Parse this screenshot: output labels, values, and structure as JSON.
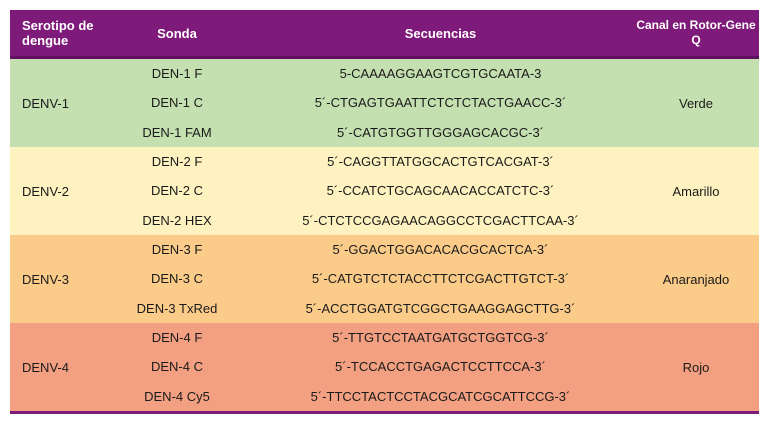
{
  "header": {
    "serotype": "Serotipo de dengue",
    "probe": "Sonda",
    "sequences": "Secuencias",
    "channel": "Canal en Rotor-Gene Q"
  },
  "groups": [
    {
      "serotype": "DENV-1",
      "channel": "Verde",
      "color": "#c5e0b0",
      "rows": [
        {
          "probe": "DEN-1 F",
          "sequence": "5-CAAAAGGAAGTCGTGCAATA-3"
        },
        {
          "probe": "DEN-1 C",
          "sequence": "5´-CTGAGTGAATTCTCTCTACTGAACC-3´"
        },
        {
          "probe": "DEN-1 FAM",
          "sequence": "5´-CATGTGGTTGGGAGCACGC-3´"
        }
      ]
    },
    {
      "serotype": "DENV-2",
      "channel": "Amarillo",
      "color": "#fdf2c0",
      "rows": [
        {
          "probe": "DEN-2 F",
          "sequence": "5´-CAGGTTATGGCACTGTCACGAT-3´"
        },
        {
          "probe": "DEN-2 C",
          "sequence": "5´-CCATCTGCAGCAACACCATCTC-3´"
        },
        {
          "probe": "DEN-2 HEX",
          "sequence": "5´-CTCTCCGAGAACAGGCCTCGACTTCAA-3´"
        }
      ]
    },
    {
      "serotype": "DENV-3",
      "channel": "Anaranjado",
      "color": "#fbcb8a",
      "rows": [
        {
          "probe": "DEN-3 F",
          "sequence": "5´-GGACTGGACACACGCACTCA-3´"
        },
        {
          "probe": "DEN-3 C",
          "sequence": "5´-CATGTCTCTACCTTCTCGACTTGTCT-3´"
        },
        {
          "probe": "DEN-3 TxRed",
          "sequence": "5´-ACCTGGATGTCGGCTGAAGGAGCTTG-3´"
        }
      ]
    },
    {
      "serotype": "DENV-4",
      "channel": "Rojo",
      "color": "#f2a081",
      "rows": [
        {
          "probe": "DEN-4 F",
          "sequence": "5´-TTGTCCTAATGATGCTGGTCG-3´"
        },
        {
          "probe": "DEN-4 C",
          "sequence": "5´-TCCACCTGAGACTCCTTCCA-3´"
        },
        {
          "probe": "DEN-4 Cy5",
          "sequence": "5´-TTCCTACTCCTACGCATCGCATTCCG-3´"
        }
      ]
    }
  ]
}
